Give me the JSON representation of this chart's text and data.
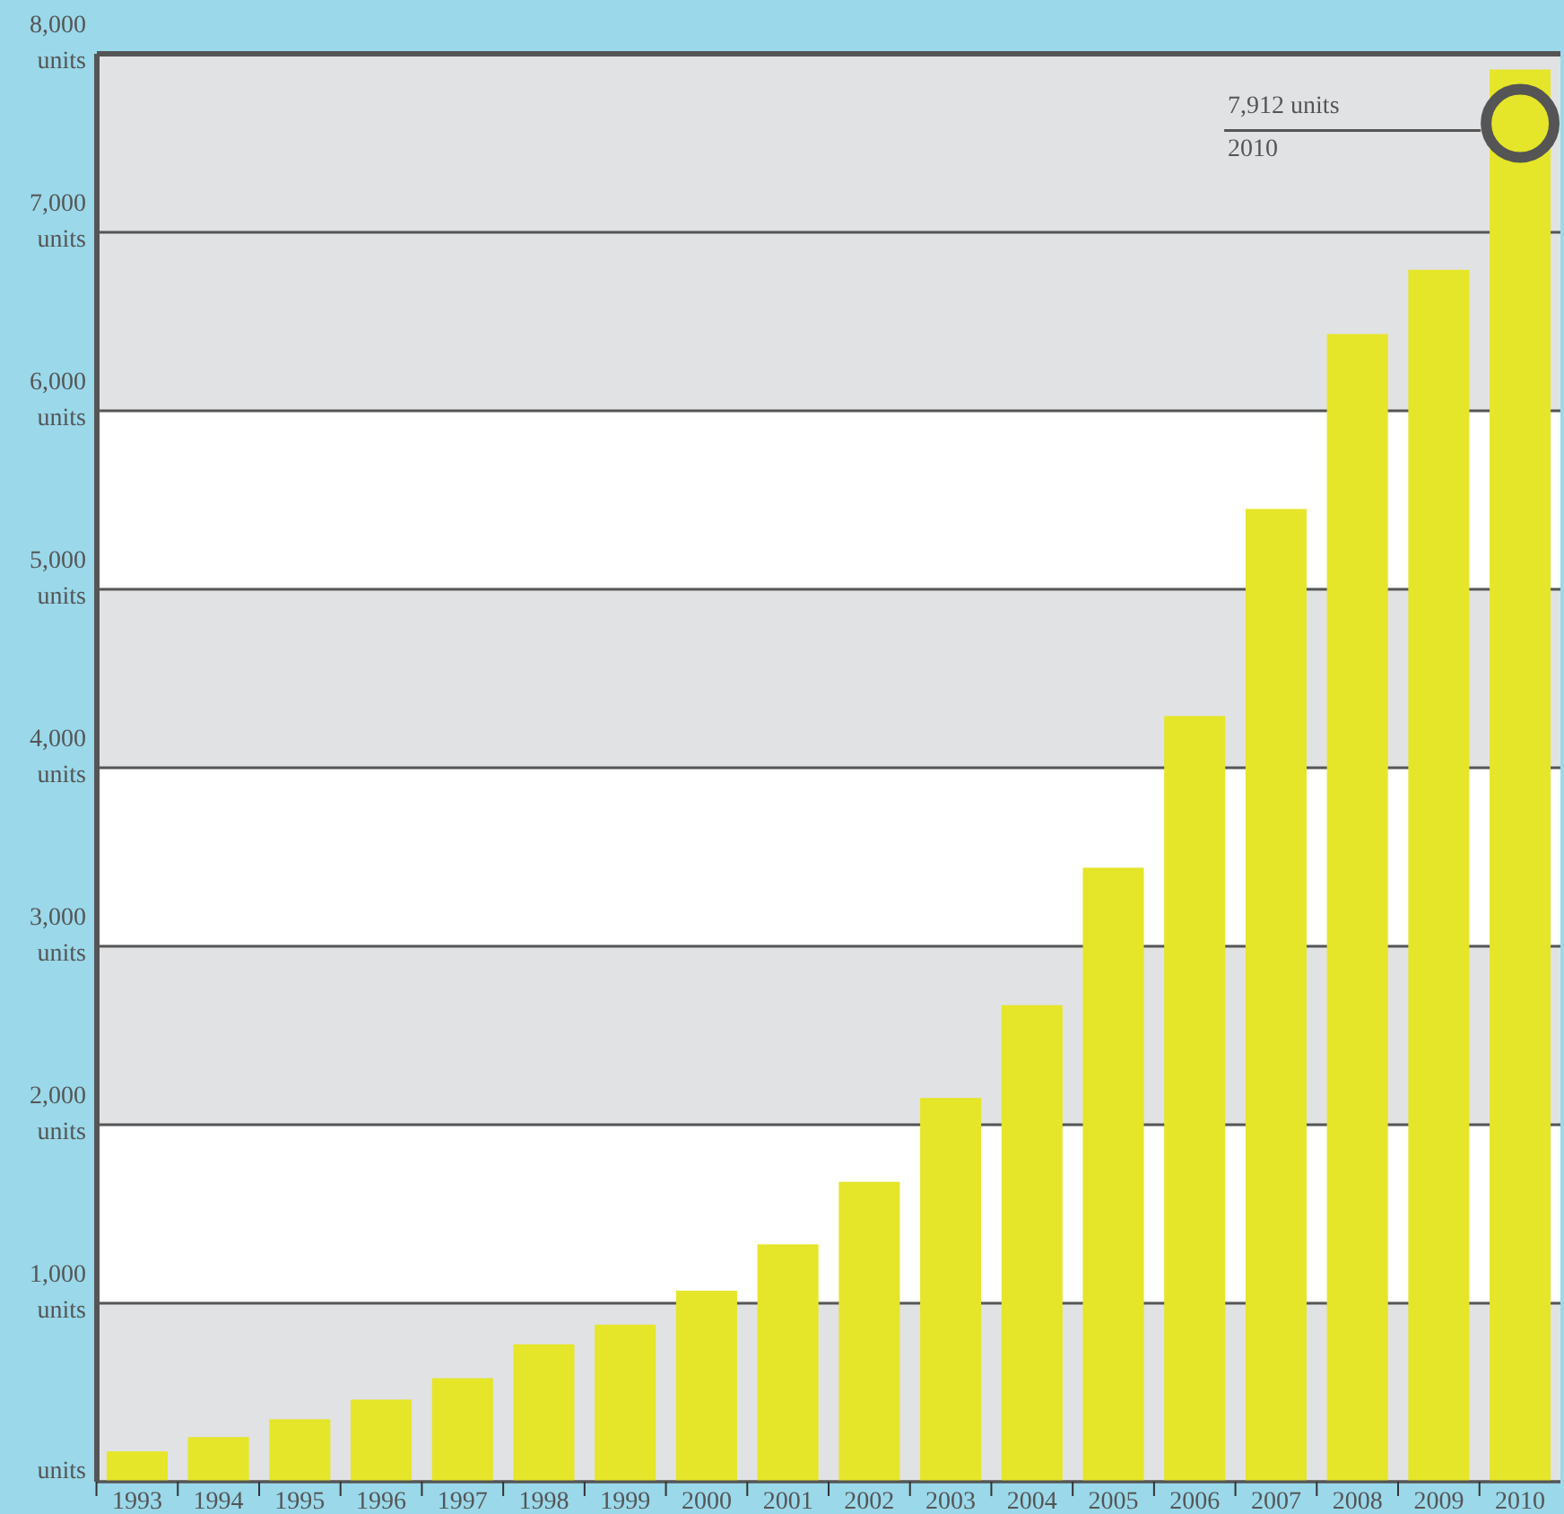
{
  "chart_data": {
    "type": "bar",
    "categories": [
      "1993",
      "1994",
      "1995",
      "1996",
      "1997",
      "1998",
      "1999",
      "2000",
      "2001",
      "2002",
      "2003",
      "2004",
      "2005",
      "2006",
      "2007",
      "2008",
      "2009",
      "2010"
    ],
    "values": [
      170,
      250,
      350,
      460,
      580,
      770,
      880,
      1070,
      1330,
      1680,
      2150,
      2670,
      3440,
      4290,
      5450,
      6430,
      6790,
      7912
    ],
    "color": "#e5e52a",
    "ylim": [
      0,
      8000
    ],
    "yticks": [
      {
        "value": 0,
        "label": "units"
      },
      {
        "value": 1000,
        "label": "1,000 units"
      },
      {
        "value": 2000,
        "label": "2,000 units"
      },
      {
        "value": 3000,
        "label": "3,000 units"
      },
      {
        "value": 4000,
        "label": "4,000 units"
      },
      {
        "value": 5000,
        "label": "5,000 units"
      },
      {
        "value": 6000,
        "label": "6,000 units"
      },
      {
        "value": 7000,
        "label": "7,000 units"
      },
      {
        "value": 8000,
        "label": "8,000 units"
      }
    ],
    "grid": "y",
    "bands": [
      {
        "axis": "y",
        "from": 0,
        "to": 1000,
        "color": "#e1e2e4"
      },
      {
        "axis": "y",
        "from": 2000,
        "to": 3000,
        "color": "#e1e2e4"
      },
      {
        "axis": "y",
        "from": 4000,
        "to": 5000,
        "color": "#e1e2e4"
      },
      {
        "axis": "y",
        "from": 6000,
        "to": 7000,
        "color": "#e1e2e4"
      },
      {
        "axis": "y",
        "from": 7000,
        "to": 8000,
        "color": "#e1e2e4"
      }
    ],
    "annotations": [
      "7,912 units\n2010"
    ]
  }
}
